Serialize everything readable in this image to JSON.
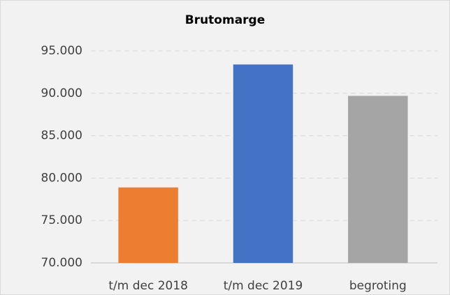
{
  "chart_data": {
    "type": "bar",
    "title": "Brutomarge",
    "categories": [
      "t/m dec 2018",
      "t/m dec 2019",
      "begroting"
    ],
    "values": [
      78900,
      93400,
      89700
    ],
    "colors": [
      "#ed7d31",
      "#4472c4",
      "#a5a5a5"
    ],
    "ylim": [
      70000,
      95000
    ],
    "yticks": [
      {
        "value": 70000,
        "label": "70.000"
      },
      {
        "value": 75000,
        "label": "75.000"
      },
      {
        "value": 80000,
        "label": "80.000"
      },
      {
        "value": 85000,
        "label": "85.000"
      },
      {
        "value": 90000,
        "label": "90.000"
      },
      {
        "value": 95000,
        "label": "95.000"
      }
    ],
    "grid": true
  }
}
